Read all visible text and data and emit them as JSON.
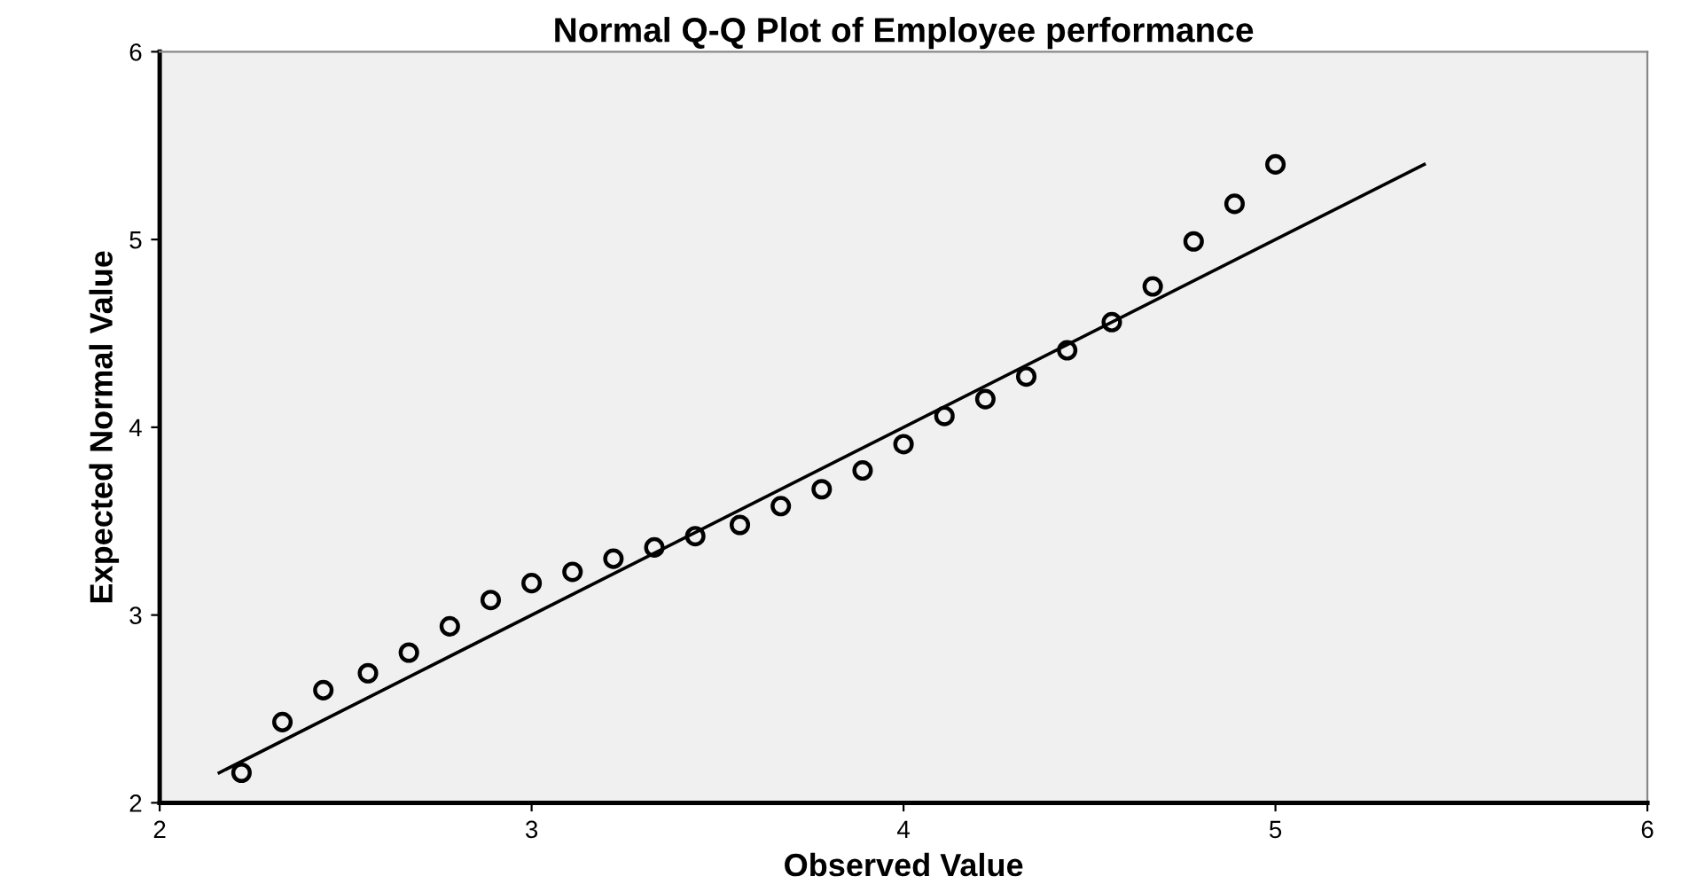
{
  "chart_data": {
    "type": "scatter",
    "title": "Normal Q-Q Plot of Employee performance",
    "xlabel": "Observed Value",
    "ylabel": "Expected Normal Value",
    "xlim": [
      2,
      6
    ],
    "ylim": [
      2,
      6
    ],
    "xticks": [
      2,
      3,
      4,
      5,
      6
    ],
    "yticks": [
      2,
      3,
      4,
      5,
      6
    ],
    "grid": false,
    "series": [
      {
        "marker": "circle",
        "color": "#000000",
        "x": [
          2.22,
          2.33,
          2.44,
          2.56,
          2.67,
          2.78,
          2.89,
          3.0,
          3.11,
          3.22,
          3.33,
          3.44,
          3.56,
          3.67,
          3.78,
          3.89,
          4.0,
          4.11,
          4.22,
          4.33,
          4.44,
          4.56,
          4.67,
          4.78,
          4.89,
          5.0
        ],
        "values": [
          2.16,
          2.43,
          2.6,
          2.69,
          2.8,
          2.94,
          3.08,
          3.17,
          3.23,
          3.3,
          3.36,
          3.42,
          3.48,
          3.58,
          3.67,
          3.77,
          3.91,
          4.06,
          4.15,
          4.27,
          4.41,
          4.56,
          4.75,
          4.99,
          5.19,
          5.4
        ]
      },
      {
        "type": "line",
        "marker": "none",
        "color": "#000000",
        "x": [
          2.16,
          5.4
        ],
        "values": [
          2.16,
          5.4
        ]
      }
    ]
  }
}
